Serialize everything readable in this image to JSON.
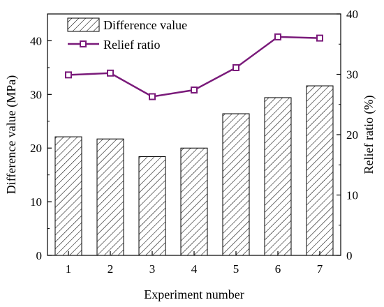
{
  "chart_data": {
    "type": "bar+line",
    "categories": [
      "1",
      "2",
      "3",
      "4",
      "5",
      "6",
      "7"
    ],
    "series": [
      {
        "name": "Difference value",
        "kind": "bar",
        "axis": "left",
        "pattern": "diagonal-hatch",
        "values": [
          22.1,
          21.7,
          18.4,
          20.0,
          26.4,
          29.4,
          31.6
        ]
      },
      {
        "name": "Relief ratio",
        "kind": "line",
        "axis": "right",
        "marker": "open-square",
        "color": "#7a1a7a",
        "values": [
          29.9,
          30.2,
          26.3,
          27.4,
          31.1,
          36.2,
          36.0
        ]
      }
    ],
    "xlabel": "Experiment number",
    "ylabel_left": "Difference value (MPa)",
    "ylabel_right": "Relief ratio (%)",
    "ylim_left": [
      0,
      45
    ],
    "ylim_right": [
      0,
      40
    ],
    "yticks_left": [
      "0",
      "10",
      "20",
      "30",
      "40"
    ],
    "yticks_right": [
      "0",
      "10",
      "20",
      "30",
      "40"
    ],
    "legend_position": "top-left",
    "grid": false
  }
}
